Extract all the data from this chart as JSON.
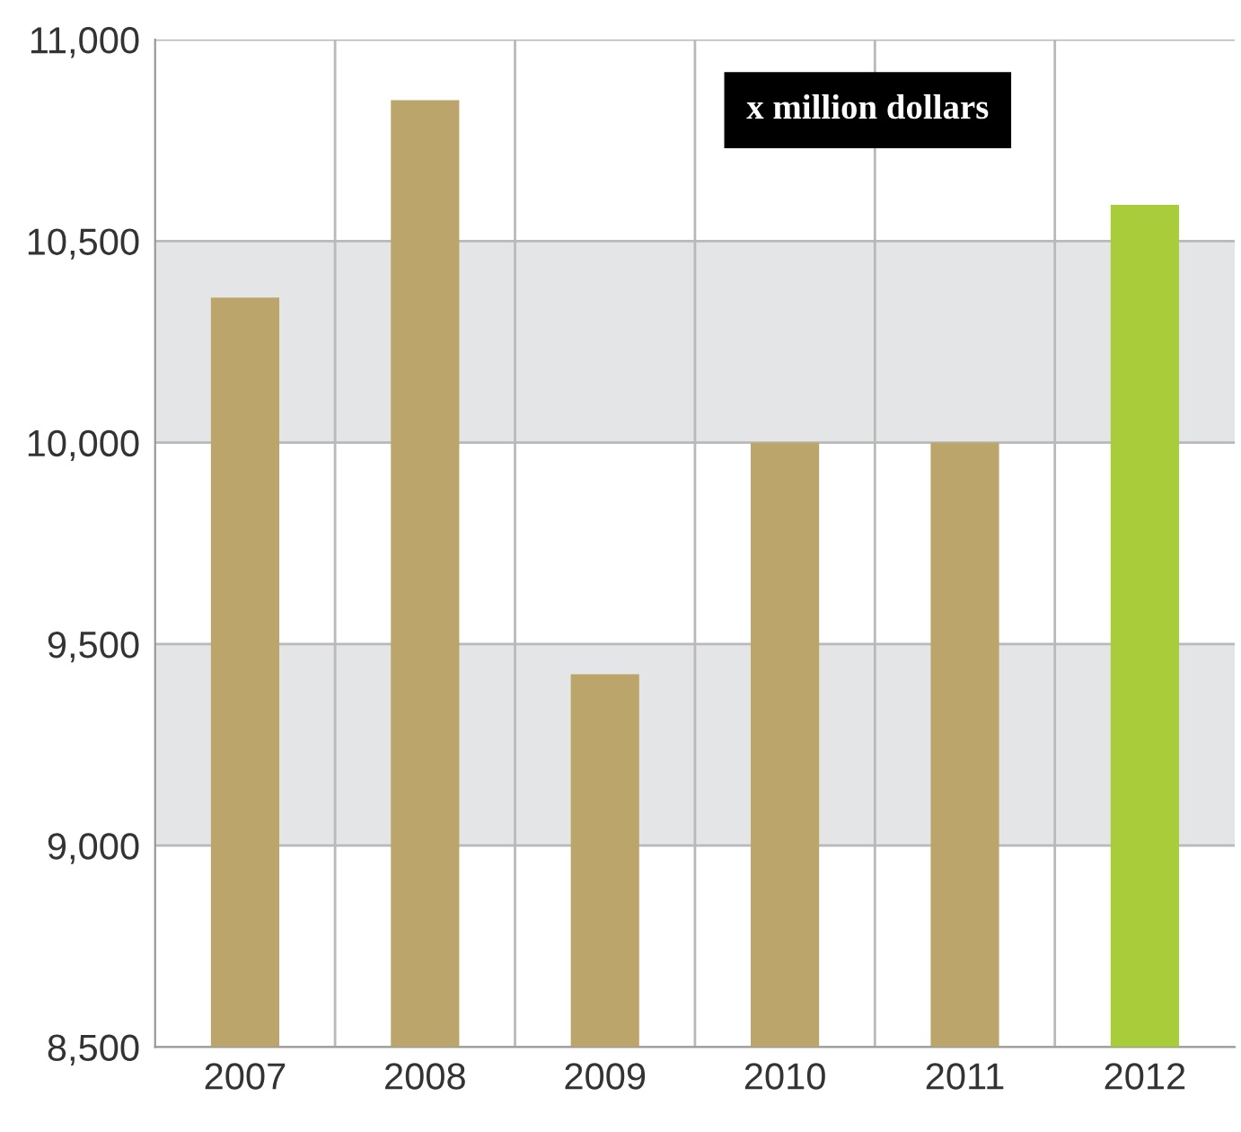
{
  "chart_data": {
    "type": "bar",
    "categories": [
      "2007",
      "2008",
      "2009",
      "2010",
      "2011",
      "2012"
    ],
    "values": [
      10360,
      10850,
      9425,
      10000,
      10000,
      10590
    ],
    "colors": [
      "#bba56b",
      "#bba56b",
      "#bba56b",
      "#bba56b",
      "#bba56b",
      "#a8cc3a"
    ],
    "ylim": [
      8500,
      11000
    ],
    "yticks": [
      {
        "value": 8500,
        "label": "8,500"
      },
      {
        "value": 9000,
        "label": "9,000"
      },
      {
        "value": 9500,
        "label": "9,500"
      },
      {
        "value": 10000,
        "label": "10,000"
      },
      {
        "value": 10500,
        "label": "10,500"
      },
      {
        "value": 11000,
        "label": "11,000"
      }
    ],
    "bands": [
      {
        "axis": "y",
        "from": 9000,
        "to": 9500,
        "color": "#e4e5e7"
      },
      {
        "axis": "y",
        "from": 10000,
        "to": 10500,
        "color": "#e4e5e7"
      }
    ],
    "annotations": [
      "x million dollars"
    ],
    "grid": true
  }
}
